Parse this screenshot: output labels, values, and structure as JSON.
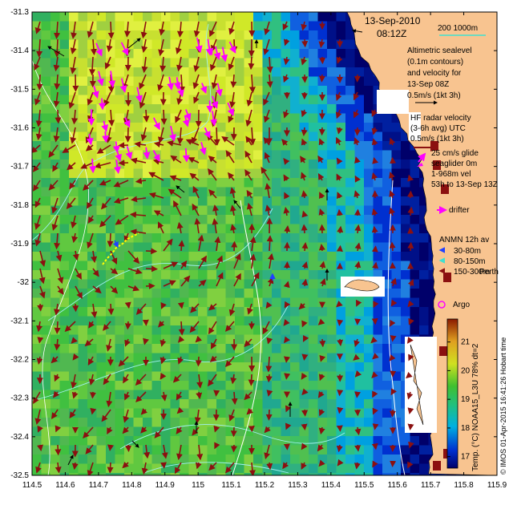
{
  "map": {
    "date": "13-Sep-2010",
    "time": "08:12Z",
    "scale_label": "200  1000m",
    "lat_ticks": [
      "-31.3",
      "-31.4",
      "-31.5",
      "-31.6",
      "-31.7",
      "-31.8",
      "-31.9",
      "-32",
      "-32.1",
      "-32.2",
      "-32.3",
      "-32.4",
      "-32.5"
    ],
    "lon_ticks": [
      "114.5",
      "114.6",
      "114.7",
      "114.8",
      "114.9",
      "115",
      "115.1",
      "115.2",
      "115.3",
      "115.4",
      "115.5",
      "115.6",
      "115.7",
      "115.8",
      "115.9"
    ],
    "extent": {
      "lon": [
        114.5,
        115.9
      ],
      "lat": [
        -32.5,
        -31.3
      ]
    },
    "place_label": "Perth"
  },
  "legend": {
    "altimetric": [
      "Altimetric sealevel",
      "(0.1m contours)",
      "and velocity for",
      "13-Sep 08Z",
      "0.5m/s (1kt 3h)"
    ],
    "hf_radar": [
      "HF radar velocity",
      "(3-6h avg) UTC",
      "0.5m/s (1kt 3h)"
    ],
    "glider": [
      "25 cm/s glide",
      "seaglider 0m",
      "1-968m vel",
      "53h to 13-Sep 13Z"
    ],
    "drifter": "drifter",
    "anmn_title": "ANMN 12h av",
    "anmn_items": [
      "30-80m",
      "80-150m",
      "150-300m"
    ],
    "argo": "Argo",
    "colors": {
      "land": "#f8c490",
      "hf_arrow": "#8b1010",
      "glider": "#ff00ff",
      "altimetry_arrow": "#000000",
      "contour": "#a0f0f0"
    }
  },
  "colorbar": {
    "label": "Temp. (°C) NOAA15_L3U 78% dt=2",
    "ticks": [
      "17",
      "18",
      "19",
      "20",
      "21"
    ],
    "range": [
      16.6,
      21.8
    ]
  },
  "credit": "© IMOS 01-Apr-2015 16:41:26 Hobart time"
}
